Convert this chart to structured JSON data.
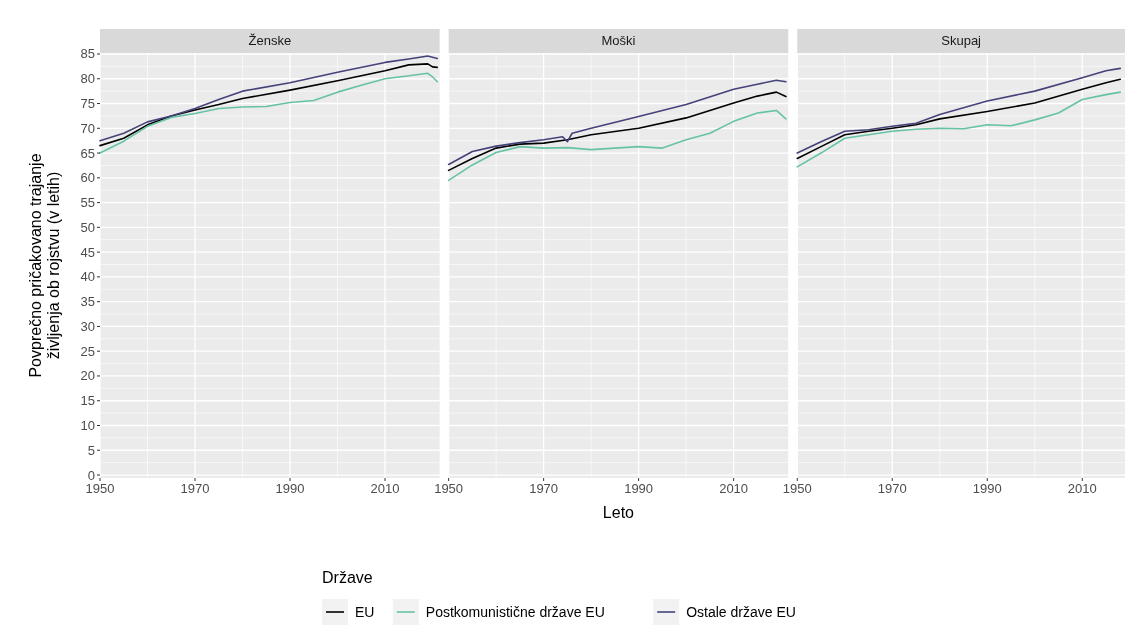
{
  "chart_data": [
    {
      "type": "line",
      "title": "Ženske",
      "ylabel": "Povprečno pričakovano trajanje\nživljenja ob rojstvu (v letih)",
      "legend_title": "Države",
      "legend": "bottom",
      "grid": true,
      "tick_labels": true,
      "xlim": [
        1950,
        2021.5
      ],
      "xticks": [
        1950,
        1970,
        1990,
        2010
      ],
      "ylim": [
        -0.6,
        85.2
      ],
      "yticks": [
        0,
        5,
        10,
        15,
        20,
        25,
        30,
        35,
        40,
        45,
        50,
        55,
        60,
        65,
        70,
        75,
        80,
        85
      ],
      "series": [
        {
          "name": "EU",
          "color": "#000000",
          "x": [
            1950,
            1955,
            1960,
            1965,
            1970,
            1975,
            1980,
            1990,
            2000,
            2010,
            2015,
            2019,
            2020,
            2021
          ],
          "values": [
            66.5,
            68,
            70.7,
            72.5,
            73.7,
            74.8,
            76,
            77.7,
            79.6,
            81.6,
            82.8,
            83,
            82.4,
            82.3
          ]
        },
        {
          "name": "Postkomunistične države EU",
          "color": "#66c2a5",
          "x": [
            1950,
            1955,
            1960,
            1965,
            1970,
            1975,
            1980,
            1985,
            1990,
            1995,
            2000,
            2005,
            2010,
            2015,
            2019,
            2020,
            2021
          ],
          "values": [
            65,
            67.4,
            70.4,
            72.2,
            73,
            74,
            74.3,
            74.4,
            75.2,
            75.6,
            77.3,
            78.7,
            80,
            80.6,
            81.1,
            80.4,
            79.4
          ]
        },
        {
          "name": "Ostale države EU",
          "color": "#45427a",
          "x": [
            1950,
            1955,
            1960,
            1965,
            1970,
            1975,
            1980,
            1990,
            2000,
            2010,
            2015,
            2019,
            2021
          ],
          "values": [
            67.5,
            69,
            71.3,
            72.5,
            74,
            75.8,
            77.5,
            79.2,
            81.3,
            83.3,
            84,
            84.6,
            84.1
          ]
        }
      ]
    },
    {
      "type": "line",
      "title": "Moški",
      "xlabel": "Leto",
      "grid": true,
      "tick_labels": "x",
      "xlim": [
        1950,
        2021.5
      ],
      "xticks": [
        1950,
        1970,
        1990,
        2010
      ],
      "ylim": [
        -0.6,
        85.2
      ],
      "series": [
        {
          "color": "#000000",
          "x": [
            1950,
            1955,
            1960,
            1965,
            1970,
            1975,
            1980,
            1990,
            2000,
            2010,
            2015,
            2019,
            2021
          ],
          "values": [
            61.5,
            63.9,
            66,
            66.8,
            67,
            67.7,
            68.7,
            70,
            72.1,
            75.1,
            76.5,
            77.3,
            76.4
          ]
        },
        {
          "color": "#66c2a5",
          "x": [
            1950,
            1955,
            1960,
            1965,
            1970,
            1975,
            1980,
            1985,
            1990,
            1995,
            2000,
            2005,
            2010,
            2015,
            2019,
            2021
          ],
          "values": [
            59.5,
            62.6,
            65.1,
            66.3,
            66,
            66.1,
            65.7,
            66,
            66.3,
            66,
            67.7,
            69,
            71.4,
            73.1,
            73.6,
            71.9
          ]
        },
        {
          "color": "#45427a",
          "x": [
            1950,
            1955,
            1960,
            1965,
            1970,
            1974,
            1975,
            1976,
            1980,
            1990,
            2000,
            2010,
            2015,
            2019,
            2021
          ],
          "values": [
            62.7,
            65.3,
            66.4,
            67.1,
            67.7,
            68.3,
            67.3,
            69,
            70,
            72.4,
            74.8,
            77.9,
            78.9,
            79.7,
            79.4
          ]
        }
      ]
    },
    {
      "type": "line",
      "title": "Skupaj",
      "grid": true,
      "tick_labels": "x",
      "xlim": [
        1950,
        2019
      ],
      "xticks": [
        1950,
        1970,
        1990,
        2010
      ],
      "ylim": [
        -0.6,
        85.2
      ],
      "series": [
        {
          "color": "#000000",
          "x": [
            1950,
            1955,
            1960,
            1965,
            1970,
            1975,
            1980,
            1990,
            2000,
            2010,
            2015,
            2018
          ],
          "values": [
            63.9,
            66.3,
            68.7,
            69.4,
            70,
            70.7,
            71.9,
            73.4,
            75.1,
            77.9,
            79.2,
            79.9
          ]
        },
        {
          "color": "#66c2a5",
          "x": [
            1950,
            1955,
            1960,
            1965,
            1970,
            1975,
            1980,
            1985,
            1990,
            1995,
            2000,
            2005,
            2010,
            2015,
            2018
          ],
          "values": [
            62.2,
            65,
            68,
            68.7,
            69.4,
            69.8,
            70,
            69.9,
            70.7,
            70.5,
            71.7,
            73.1,
            75.8,
            76.8,
            77.3
          ]
        },
        {
          "color": "#45427a",
          "x": [
            1950,
            1955,
            1960,
            1965,
            1970,
            1975,
            1980,
            1990,
            2000,
            2010,
            2015,
            2018
          ],
          "values": [
            65,
            67.3,
            69.4,
            69.7,
            70.4,
            71,
            72.8,
            75.5,
            77.5,
            80.2,
            81.6,
            82.1
          ]
        }
      ]
    }
  ]
}
